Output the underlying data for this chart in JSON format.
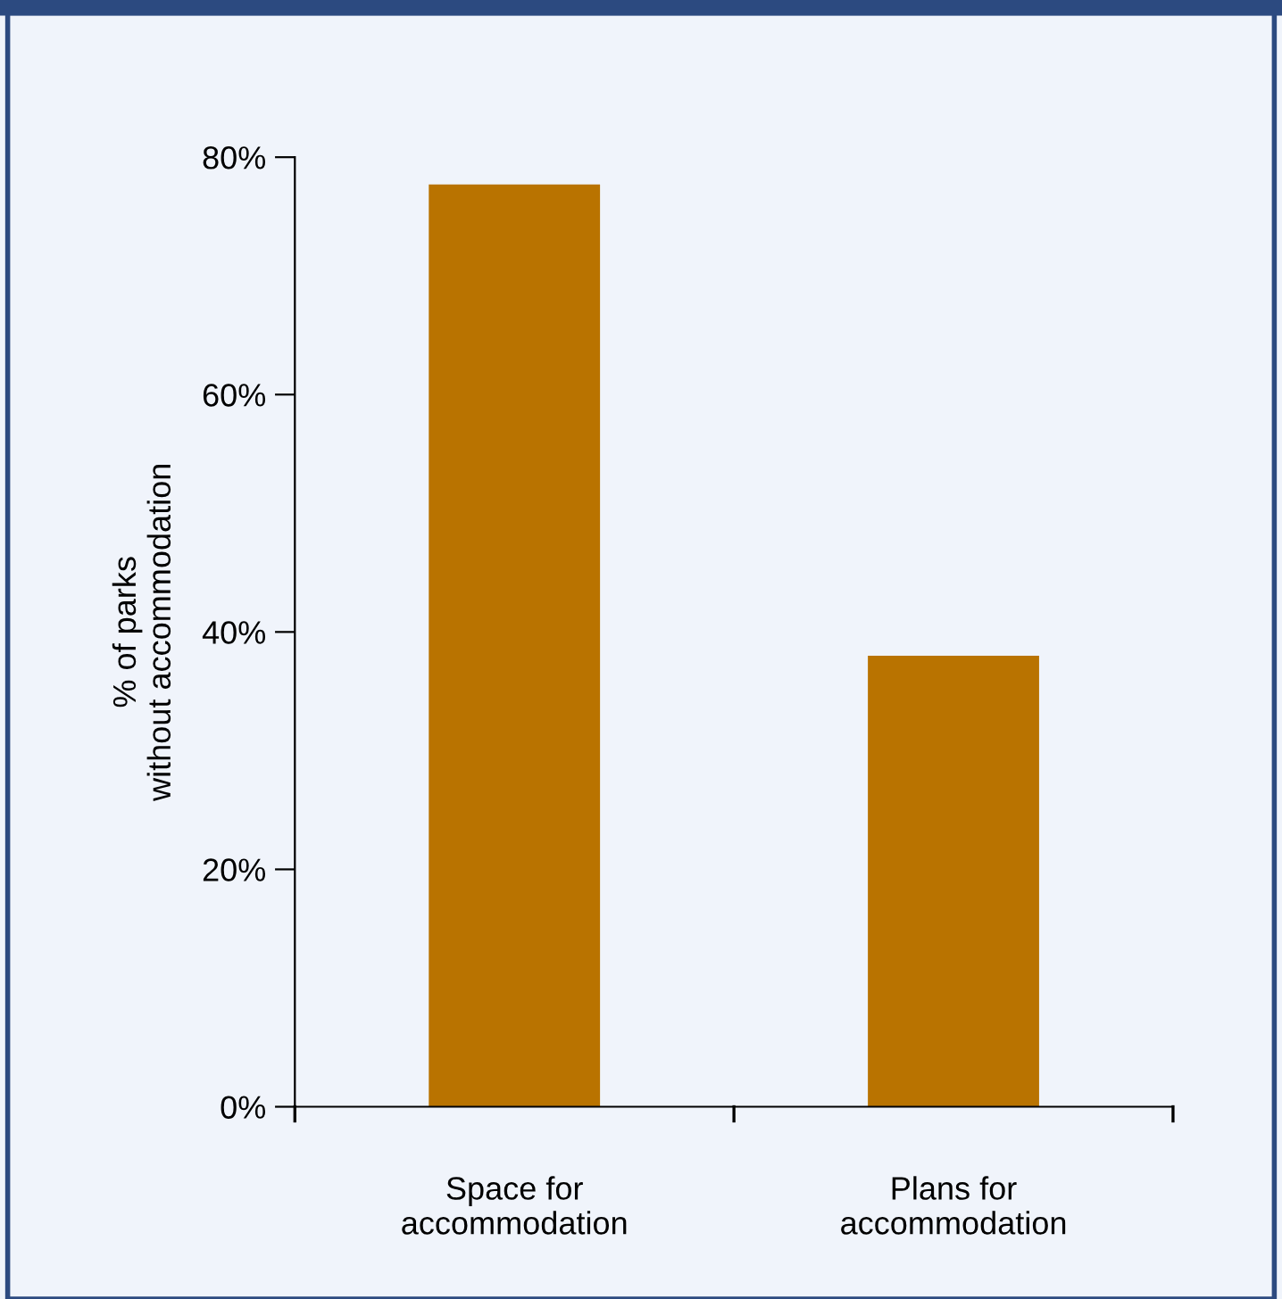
{
  "chart_data": {
    "type": "bar",
    "ylabel": "% of parks\nwithout accommodation",
    "categories": [
      "Space for\naccommodation",
      "Plans for\naccommodation"
    ],
    "values": [
      77.7,
      38.0
    ],
    "color": "#b97300",
    "ylim": [
      0,
      80
    ],
    "yticks": [
      {
        "value": 0,
        "label": "0%"
      },
      {
        "value": 20,
        "label": "20%"
      },
      {
        "value": 40,
        "label": "40%"
      },
      {
        "value": 60,
        "label": "60%"
      },
      {
        "value": 80,
        "label": "80%"
      }
    ],
    "grid": false,
    "legend": false
  }
}
